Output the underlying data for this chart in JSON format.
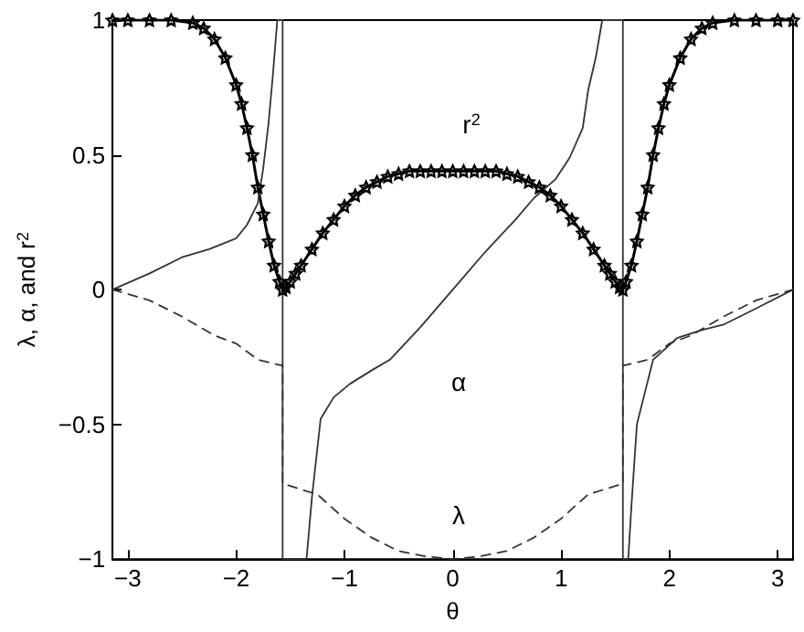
{
  "chart_data": {
    "type": "line",
    "xlabel": "θ",
    "ylabel": "λ, α, and r$^{2}$",
    "xlim": [
      -3.1416,
      3.1416
    ],
    "xticks": [
      -3,
      -2,
      -1,
      0,
      1,
      2,
      3
    ],
    "ylim": [
      -1,
      1
    ],
    "yticks": [
      -1,
      -0.5,
      0,
      0.5,
      1
    ],
    "grid": false,
    "series": [
      {
        "color": "#000000",
        "marker": "star",
        "line_style": "solid",
        "x": [
          -3.1416,
          -3.0,
          -2.8,
          -2.6,
          -2.4,
          -2.3,
          -2.2,
          -2.1,
          -2.0,
          -1.95,
          -1.9,
          -1.85,
          -1.8,
          -1.75,
          -1.7,
          -1.65,
          -1.6,
          -1.5708,
          -1.54,
          -1.5,
          -1.45,
          -1.4,
          -1.3,
          -1.2,
          -1.1,
          -1.0,
          -0.9,
          -0.8,
          -0.7,
          -0.6,
          -0.5,
          -0.4,
          -0.3,
          -0.2,
          -0.1,
          0,
          0.1,
          0.2,
          0.3,
          0.4,
          0.5,
          0.6,
          0.7,
          0.8,
          0.9,
          1.0,
          1.1,
          1.2,
          1.3,
          1.4,
          1.45,
          1.5,
          1.54,
          1.5708,
          1.6,
          1.65,
          1.7,
          1.75,
          1.8,
          1.85,
          1.9,
          1.95,
          2.0,
          2.1,
          2.2,
          2.3,
          2.4,
          2.6,
          2.8,
          3.0,
          3.1416
        ],
        "values": [
          1,
          1,
          1,
          1,
          0.99,
          0.97,
          0.93,
          0.86,
          0.76,
          0.69,
          0.6,
          0.5,
          0.38,
          0.28,
          0.18,
          0.09,
          0.03,
          0,
          0.01,
          0.03,
          0.06,
          0.09,
          0.15,
          0.21,
          0.26,
          0.31,
          0.35,
          0.38,
          0.4,
          0.42,
          0.43,
          0.44,
          0.44,
          0.44,
          0.44,
          0.44,
          0.44,
          0.44,
          0.44,
          0.44,
          0.43,
          0.42,
          0.4,
          0.38,
          0.35,
          0.31,
          0.26,
          0.21,
          0.15,
          0.09,
          0.06,
          0.03,
          0.01,
          0,
          0.03,
          0.09,
          0.18,
          0.28,
          0.38,
          0.5,
          0.6,
          0.69,
          0.76,
          0.86,
          0.93,
          0.97,
          0.99,
          1,
          1,
          1,
          1
        ]
      },
      {
        "color": "#333333",
        "marker": "none",
        "line_style": "solid",
        "x": [
          -3.1416,
          -2.8,
          -2.5,
          -2.25,
          -2.0,
          -1.9,
          -1.8,
          -1.75,
          -1.7,
          -1.66,
          -1.62,
          -1.5708,
          -1.5708,
          -1.35,
          -1.3,
          -1.22,
          -1.1,
          -0.95,
          -0.75,
          -0.58,
          -0.3,
          0,
          0.3,
          0.58,
          0.75,
          0.95,
          1.08,
          1.2,
          1.25,
          1.32,
          1.38,
          1.5708,
          1.5708,
          1.62,
          1.65,
          1.7,
          1.85,
          2.07,
          2.3,
          2.5,
          2.8,
          3.1416
        ],
        "values": [
          0,
          0.06,
          0.12,
          0.15,
          0.19,
          0.24,
          0.32,
          0.45,
          0.62,
          0.8,
          1,
          1,
          -1,
          -1,
          -0.77,
          -0.48,
          -0.4,
          -0.35,
          -0.3,
          -0.26,
          -0.14,
          0,
          0.14,
          0.26,
          0.34,
          0.41,
          0.49,
          0.6,
          0.74,
          0.86,
          1,
          1,
          -1,
          -1,
          -0.8,
          -0.5,
          -0.26,
          -0.18,
          -0.15,
          -0.13,
          -0.07,
          0
        ]
      },
      {
        "color": "#333333",
        "marker": "none",
        "line_style": "dashed",
        "x": [
          -3.1416,
          -2.8,
          -2.5,
          -2.2,
          -2.0,
          -1.8,
          -1.6,
          -1.5708,
          -1.5708,
          -1.25,
          -1.0,
          -0.75,
          -0.5,
          -0.25,
          0,
          0.25,
          0.5,
          0.75,
          1.0,
          1.25,
          1.5708,
          1.5708,
          1.6,
          1.8,
          2.0,
          2.2,
          2.5,
          2.8,
          3.1416
        ],
        "values": [
          0,
          -0.04,
          -0.1,
          -0.17,
          -0.2,
          -0.26,
          -0.28,
          -0.28,
          -0.72,
          -0.76,
          -0.85,
          -0.92,
          -0.97,
          -0.99,
          -1,
          -0.99,
          -0.97,
          -0.92,
          -0.85,
          -0.76,
          -0.72,
          -0.28,
          -0.28,
          -0.26,
          -0.2,
          -0.17,
          -0.1,
          -0.04,
          0
        ]
      }
    ],
    "annotations": [
      "r$^{2}$",
      "α",
      "λ"
    ]
  }
}
